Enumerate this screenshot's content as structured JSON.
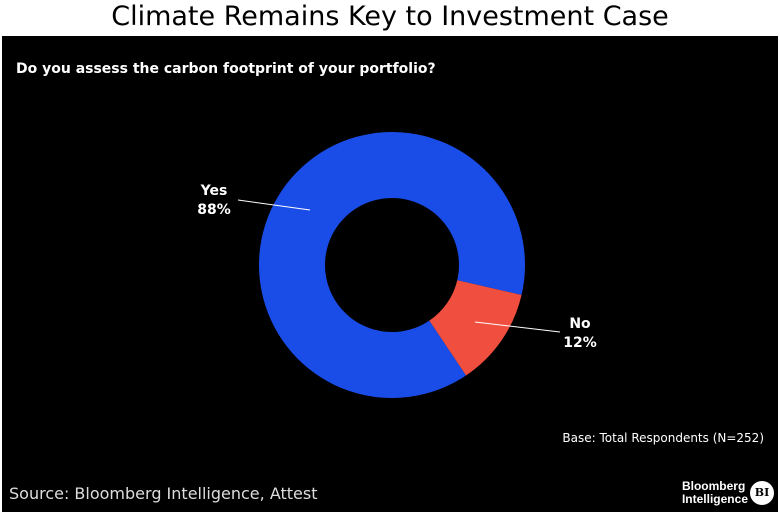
{
  "title": "Climate Remains Key to Investment Case",
  "chart_data": {
    "type": "pie",
    "subtype": "donut",
    "title": "Do you assess the carbon footprint of your portfolio?",
    "slices": [
      {
        "label": "No",
        "value": 12,
        "value_label": "12%",
        "color": "#f04e3e"
      },
      {
        "label": "Yes",
        "value": 88,
        "value_label": "88%",
        "color": "#1a4de8"
      }
    ],
    "note": "Base: Total Respondents (N=252)"
  },
  "footer": {
    "source": "Source: Bloomberg Intelligence, Attest",
    "logo_line1": "Bloomberg",
    "logo_line2": "Intelligence",
    "logo_badge": "BI"
  }
}
